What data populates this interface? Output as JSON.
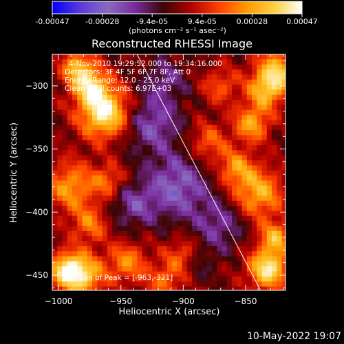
{
  "colorbar": {
    "tick_labels": [
      "-0.00047",
      "-0.00028",
      "-9.4e-05",
      "9.4e-05",
      "0.00028",
      "0.00047"
    ],
    "unit_label": "(photons cm⁻² s⁻¹ asec⁻²)",
    "colormap_stops": [
      "#0000ff",
      "#5a3ad8",
      "#8a6ac0",
      "#7a2a9a",
      "#3a0505",
      "#b00000",
      "#ff4000",
      "#ff9a00",
      "#ffd040",
      "#ffffff"
    ]
  },
  "chart_data": {
    "type": "heatmap",
    "title": "Reconstructed RHESSI Image",
    "xlabel": "Heliocentric X (arcsec)",
    "ylabel": "Heliocentric Y (arcsec)",
    "xlim": [
      -1005,
      -818
    ],
    "ylim": [
      -462,
      -275
    ],
    "x_ticks": [
      -1000,
      -950,
      -900,
      -850
    ],
    "y_ticks": [
      -300,
      -350,
      -400,
      -450
    ],
    "x_tick_labels": [
      "−1000",
      "−950",
      "−900",
      "−850"
    ],
    "y_tick_labels": [
      "−300",
      "−350",
      "−400",
      "−450"
    ],
    "value_range": [
      -0.00047,
      0.00047
    ],
    "peak_position": [
      -963,
      -321
    ],
    "limb_line": {
      "from": [
        -937,
        -275
      ],
      "to": [
        -838,
        -462
      ]
    },
    "grid": false
  },
  "info": {
    "time_range": "4-Nov-2010 19:29:52.000 to 19:34:16.000",
    "detectors": "Detectors: 3F 4F 5F 6F 7F 8F, Att 0",
    "energy": "Energy Range: 12.0 - 25.0 keV",
    "clean": "Clean     Total counts: 6.97E+03",
    "peak": "Position of Peak = [-963,-321]"
  },
  "footer": {
    "datetime": "10-May-2022 19:07"
  }
}
